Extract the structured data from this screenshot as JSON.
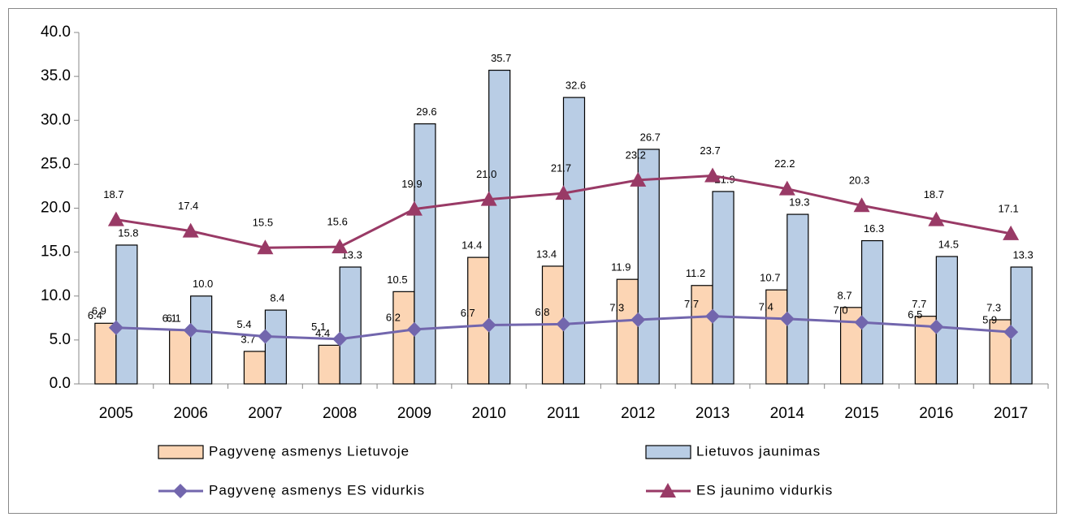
{
  "chart_data": {
    "type": "bar_line",
    "categories": [
      "2005",
      "2006",
      "2007",
      "2008",
      "2009",
      "2010",
      "2011",
      "2012",
      "2013",
      "2014",
      "2015",
      "2016",
      "2017"
    ],
    "series": [
      {
        "name": "Pagyvenę asmenys Lietuvoje",
        "kind": "bar",
        "color": "#fcd5b4",
        "values": [
          6.9,
          6.1,
          3.7,
          4.4,
          10.5,
          14.4,
          13.4,
          11.9,
          11.2,
          10.7,
          8.7,
          7.7,
          7.3
        ],
        "value_labels": [
          "6.9",
          "6.1",
          "3.7",
          "4.4",
          "10.5",
          "14.4",
          "13.4",
          "11.9",
          "11.2",
          "10.7",
          "8.7",
          "7.7",
          "7.3"
        ]
      },
      {
        "name": "Lietuvos jaunimas",
        "kind": "bar",
        "color": "#b9cde5",
        "values": [
          15.8,
          10,
          8.4,
          13.3,
          29.6,
          35.7,
          32.6,
          26.7,
          21.9,
          19.3,
          16.3,
          14.5,
          13.3
        ],
        "value_labels": [
          "15.8",
          "10.0",
          "8.4",
          "13.3",
          "29.6",
          "35.7",
          "32.6",
          "26.7",
          "21.9",
          "19.3",
          "16.3",
          "14.5",
          "13.3"
        ]
      },
      {
        "name": "Pagyvenę asmenys ES vidurkis",
        "kind": "line",
        "marker": "diamond",
        "color": "#7266ad",
        "values": [
          6.4,
          6.1,
          5.4,
          5.1,
          6.2,
          6.7,
          6.8,
          7.3,
          7.7,
          7.4,
          7,
          6.5,
          5.9
        ],
        "value_labels": [
          "6.4",
          "6.1",
          "5.4",
          "5.1",
          "6.2",
          "6.7",
          "6.8",
          "7.3",
          "7.7",
          "7.4",
          "7.0",
          "6.5",
          "5.9"
        ]
      },
      {
        "name": "ES jaunimo vidurkis",
        "kind": "line",
        "marker": "triangle",
        "color": "#993a66",
        "values": [
          18.7,
          17.4,
          15.5,
          15.6,
          19.9,
          21,
          21.7,
          23.2,
          23.7,
          22.2,
          20.3,
          18.7,
          17.1
        ],
        "value_labels": [
          "18.7",
          "17.4",
          "15.5",
          "15.6",
          "19.9",
          "21.0",
          "21.7",
          "23.2",
          "23.7",
          "22.2",
          "20.3",
          "18.7",
          "17.1"
        ]
      }
    ],
    "ylim": [
      0,
      40
    ],
    "yticks": [
      {
        "value": 0,
        "label": "0.0"
      },
      {
        "value": 5,
        "label": "5.0"
      },
      {
        "value": 10,
        "label": "10.0"
      },
      {
        "value": 15,
        "label": "15.0"
      },
      {
        "value": 20,
        "label": "20.0"
      },
      {
        "value": 25,
        "label": "25.0"
      },
      {
        "value": 30,
        "label": "30.0"
      },
      {
        "value": 35,
        "label": "35.0"
      },
      {
        "value": 40,
        "label": "40.0"
      }
    ],
    "grid": false
  }
}
